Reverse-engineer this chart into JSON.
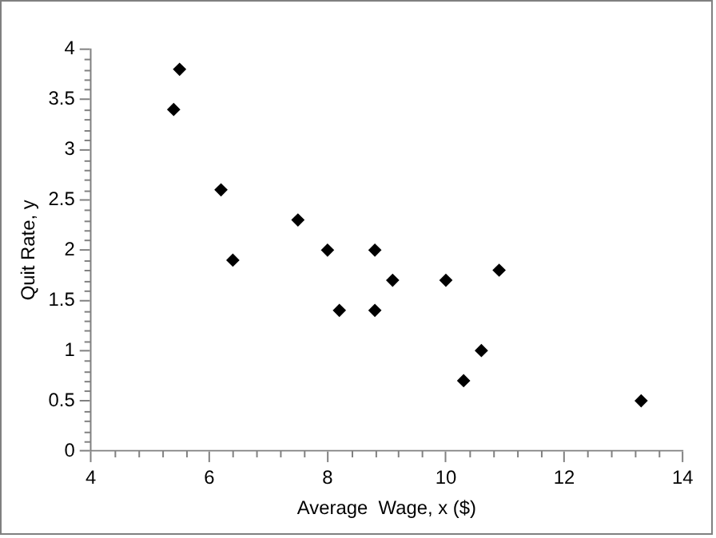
{
  "chart_data": {
    "type": "scatter",
    "xlabel": "Average  Wage, x ($)",
    "ylabel": "Quit Rate, y",
    "x": [
      5.4,
      5.5,
      6.2,
      6.4,
      7.5,
      8.0,
      8.2,
      8.8,
      8.8,
      9.1,
      10.0,
      10.3,
      10.6,
      10.9,
      13.3
    ],
    "values": [
      3.4,
      3.8,
      2.6,
      1.9,
      2.3,
      2.0,
      1.4,
      2.0,
      1.4,
      1.7,
      1.7,
      0.7,
      1.0,
      1.8,
      0.5
    ],
    "color": "#000000",
    "marker": "diamond",
    "xlim": [
      4,
      14
    ],
    "xticks": [
      4,
      6,
      8,
      10,
      12,
      14
    ],
    "ylim": [
      0,
      4
    ],
    "yticks": [
      0,
      0.5,
      1,
      1.5,
      2,
      2.5,
      3,
      3.5,
      4
    ],
    "grid": false,
    "legend": false
  }
}
